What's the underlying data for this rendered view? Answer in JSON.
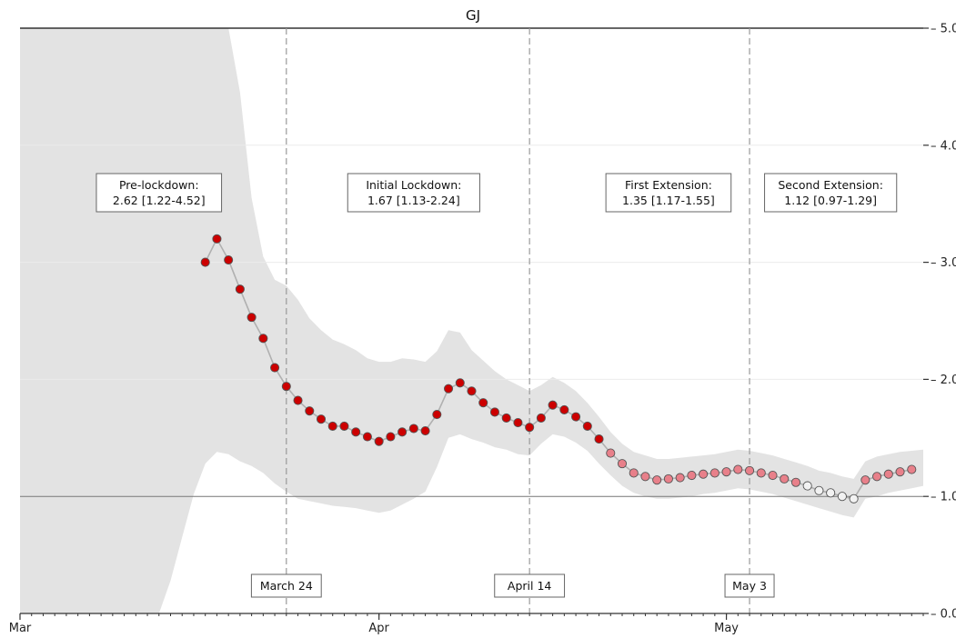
{
  "chart_data": {
    "type": "line",
    "title": "GJ",
    "xlabel": "",
    "ylabel": "",
    "y_axis_side": "right",
    "ylim": [
      0.0,
      5.0
    ],
    "yticks": [
      "0.0",
      "1.0",
      "2.0",
      "3.0",
      "4.0",
      "5.0"
    ],
    "xlim": [
      "2020-03-01",
      "2020-05-18"
    ],
    "xticks": [
      {
        "date": "2020-03-01",
        "label": "Mar"
      },
      {
        "date": "2020-04-01",
        "label": "Apr"
      },
      {
        "date": "2020-05-01",
        "label": "May"
      }
    ],
    "reference_lines": [
      1.0,
      5.0
    ],
    "grid": true,
    "colors": {
      "band": "#e3e3e3",
      "line": "#b0b0b0",
      "vline": "#9a9a9a",
      "point_dark": "#cc0000",
      "point_mid": "#e8808a",
      "point_light": "#f2f2f2",
      "point_edge": "#555555"
    },
    "phases": [
      {
        "label": "Pre-lockdown:",
        "value": "2.62 [1.22-4.52]",
        "x_center": "2020-03-13"
      },
      {
        "label": "Initial Lockdown:",
        "value": "1.67 [1.13-2.24]",
        "x_center": "2020-04-04"
      },
      {
        "label": "First Extension:",
        "value": "1.35 [1.17-1.55]",
        "x_center": "2020-04-26"
      },
      {
        "label": "Second Extension:",
        "value": "1.12 [0.97-1.29]",
        "x_center": "2020-05-10"
      }
    ],
    "events": [
      {
        "date": "2020-03-24",
        "label": "March 24"
      },
      {
        "date": "2020-04-14",
        "label": "April 14"
      },
      {
        "date": "2020-05-03",
        "label": "May 3"
      }
    ],
    "series": [
      {
        "values": [
          [
            "2020-03-17",
            3.0,
            "dark"
          ],
          [
            "2020-03-18",
            3.2,
            "dark"
          ],
          [
            "2020-03-19",
            3.02,
            "dark"
          ],
          [
            "2020-03-20",
            2.77,
            "dark"
          ],
          [
            "2020-03-21",
            2.53,
            "dark"
          ],
          [
            "2020-03-22",
            2.35,
            "dark"
          ],
          [
            "2020-03-23",
            2.1,
            "dark"
          ],
          [
            "2020-03-24",
            1.94,
            "dark"
          ],
          [
            "2020-03-25",
            1.82,
            "dark"
          ],
          [
            "2020-03-26",
            1.73,
            "dark"
          ],
          [
            "2020-03-27",
            1.66,
            "dark"
          ],
          [
            "2020-03-28",
            1.6,
            "dark"
          ],
          [
            "2020-03-29",
            1.6,
            "dark"
          ],
          [
            "2020-03-30",
            1.55,
            "dark"
          ],
          [
            "2020-03-31",
            1.51,
            "dark"
          ],
          [
            "2020-04-01",
            1.47,
            "dark"
          ],
          [
            "2020-04-02",
            1.51,
            "dark"
          ],
          [
            "2020-04-03",
            1.55,
            "dark"
          ],
          [
            "2020-04-04",
            1.58,
            "dark"
          ],
          [
            "2020-04-05",
            1.56,
            "dark"
          ],
          [
            "2020-04-06",
            1.7,
            "dark"
          ],
          [
            "2020-04-07",
            1.92,
            "dark"
          ],
          [
            "2020-04-08",
            1.97,
            "dark"
          ],
          [
            "2020-04-09",
            1.9,
            "dark"
          ],
          [
            "2020-04-10",
            1.8,
            "dark"
          ],
          [
            "2020-04-11",
            1.72,
            "dark"
          ],
          [
            "2020-04-12",
            1.67,
            "dark"
          ],
          [
            "2020-04-13",
            1.63,
            "dark"
          ],
          [
            "2020-04-14",
            1.59,
            "dark"
          ],
          [
            "2020-04-15",
            1.67,
            "dark"
          ],
          [
            "2020-04-16",
            1.78,
            "dark"
          ],
          [
            "2020-04-17",
            1.74,
            "dark"
          ],
          [
            "2020-04-18",
            1.68,
            "dark"
          ],
          [
            "2020-04-19",
            1.6,
            "dark"
          ],
          [
            "2020-04-20",
            1.49,
            "dark"
          ],
          [
            "2020-04-21",
            1.37,
            "mid"
          ],
          [
            "2020-04-22",
            1.28,
            "mid"
          ],
          [
            "2020-04-23",
            1.2,
            "mid"
          ],
          [
            "2020-04-24",
            1.17,
            "mid"
          ],
          [
            "2020-04-25",
            1.14,
            "mid"
          ],
          [
            "2020-04-26",
            1.15,
            "mid"
          ],
          [
            "2020-04-27",
            1.16,
            "mid"
          ],
          [
            "2020-04-28",
            1.18,
            "mid"
          ],
          [
            "2020-04-29",
            1.19,
            "mid"
          ],
          [
            "2020-04-30",
            1.2,
            "mid"
          ],
          [
            "2020-05-01",
            1.21,
            "mid"
          ],
          [
            "2020-05-02",
            1.23,
            "mid"
          ],
          [
            "2020-05-03",
            1.22,
            "mid"
          ],
          [
            "2020-05-04",
            1.2,
            "mid"
          ],
          [
            "2020-05-05",
            1.18,
            "mid"
          ],
          [
            "2020-05-06",
            1.15,
            "mid"
          ],
          [
            "2020-05-07",
            1.12,
            "mid"
          ],
          [
            "2020-05-08",
            1.09,
            "light"
          ],
          [
            "2020-05-09",
            1.05,
            "light"
          ],
          [
            "2020-05-10",
            1.03,
            "light"
          ],
          [
            "2020-05-11",
            1.0,
            "light"
          ],
          [
            "2020-05-12",
            0.98,
            "light"
          ],
          [
            "2020-05-13",
            1.14,
            "mid"
          ],
          [
            "2020-05-14",
            1.17,
            "mid"
          ],
          [
            "2020-05-15",
            1.19,
            "mid"
          ],
          [
            "2020-05-16",
            1.21,
            "mid"
          ],
          [
            "2020-05-17",
            1.23,
            "mid"
          ]
        ]
      }
    ],
    "band": {
      "upper": [
        [
          "2020-03-01",
          5.0
        ],
        [
          "2020-03-19",
          5.0
        ],
        [
          "2020-03-20",
          4.45
        ],
        [
          "2020-03-21",
          3.55
        ],
        [
          "2020-03-22",
          3.05
        ],
        [
          "2020-03-23",
          2.85
        ],
        [
          "2020-03-24",
          2.8
        ],
        [
          "2020-03-25",
          2.68
        ],
        [
          "2020-03-26",
          2.52
        ],
        [
          "2020-03-27",
          2.42
        ],
        [
          "2020-03-28",
          2.34
        ],
        [
          "2020-03-29",
          2.3
        ],
        [
          "2020-03-30",
          2.25
        ],
        [
          "2020-03-31",
          2.18
        ],
        [
          "2020-04-01",
          2.15
        ],
        [
          "2020-04-02",
          2.15
        ],
        [
          "2020-04-03",
          2.18
        ],
        [
          "2020-04-04",
          2.17
        ],
        [
          "2020-04-05",
          2.15
        ],
        [
          "2020-04-06",
          2.24
        ],
        [
          "2020-04-07",
          2.42
        ],
        [
          "2020-04-08",
          2.4
        ],
        [
          "2020-04-09",
          2.25
        ],
        [
          "2020-04-10",
          2.16
        ],
        [
          "2020-04-11",
          2.07
        ],
        [
          "2020-04-12",
          2.0
        ],
        [
          "2020-04-13",
          1.95
        ],
        [
          "2020-04-14",
          1.9
        ],
        [
          "2020-04-15",
          1.95
        ],
        [
          "2020-04-16",
          2.02
        ],
        [
          "2020-04-17",
          1.97
        ],
        [
          "2020-04-18",
          1.9
        ],
        [
          "2020-04-19",
          1.8
        ],
        [
          "2020-04-20",
          1.68
        ],
        [
          "2020-04-21",
          1.55
        ],
        [
          "2020-04-22",
          1.45
        ],
        [
          "2020-04-23",
          1.38
        ],
        [
          "2020-04-24",
          1.35
        ],
        [
          "2020-04-25",
          1.32
        ],
        [
          "2020-04-26",
          1.32
        ],
        [
          "2020-04-27",
          1.33
        ],
        [
          "2020-04-28",
          1.34
        ],
        [
          "2020-04-29",
          1.35
        ],
        [
          "2020-04-30",
          1.36
        ],
        [
          "2020-05-01",
          1.38
        ],
        [
          "2020-05-02",
          1.4
        ],
        [
          "2020-05-03",
          1.39
        ],
        [
          "2020-05-04",
          1.37
        ],
        [
          "2020-05-05",
          1.35
        ],
        [
          "2020-05-06",
          1.32
        ],
        [
          "2020-05-07",
          1.29
        ],
        [
          "2020-05-08",
          1.26
        ],
        [
          "2020-05-09",
          1.22
        ],
        [
          "2020-05-10",
          1.2
        ],
        [
          "2020-05-11",
          1.17
        ],
        [
          "2020-05-12",
          1.15
        ],
        [
          "2020-05-13",
          1.3
        ],
        [
          "2020-05-14",
          1.34
        ],
        [
          "2020-05-15",
          1.36
        ],
        [
          "2020-05-16",
          1.38
        ],
        [
          "2020-05-17",
          1.39
        ],
        [
          "2020-05-18",
          1.4
        ]
      ],
      "lower": [
        [
          "2020-03-01",
          0.0
        ],
        [
          "2020-03-13",
          0.0
        ],
        [
          "2020-03-14",
          0.28
        ],
        [
          "2020-03-15",
          0.65
        ],
        [
          "2020-03-16",
          1.02
        ],
        [
          "2020-03-17",
          1.28
        ],
        [
          "2020-03-18",
          1.38
        ],
        [
          "2020-03-19",
          1.36
        ],
        [
          "2020-03-20",
          1.3
        ],
        [
          "2020-03-21",
          1.26
        ],
        [
          "2020-03-22",
          1.2
        ],
        [
          "2020-03-23",
          1.11
        ],
        [
          "2020-03-24",
          1.04
        ],
        [
          "2020-03-25",
          0.98
        ],
        [
          "2020-03-26",
          0.96
        ],
        [
          "2020-03-27",
          0.94
        ],
        [
          "2020-03-28",
          0.92
        ],
        [
          "2020-03-29",
          0.91
        ],
        [
          "2020-03-30",
          0.9
        ],
        [
          "2020-03-31",
          0.88
        ],
        [
          "2020-04-01",
          0.86
        ],
        [
          "2020-04-02",
          0.88
        ],
        [
          "2020-04-03",
          0.93
        ],
        [
          "2020-04-04",
          0.98
        ],
        [
          "2020-04-05",
          1.04
        ],
        [
          "2020-04-06",
          1.25
        ],
        [
          "2020-04-07",
          1.5
        ],
        [
          "2020-04-08",
          1.53
        ],
        [
          "2020-04-09",
          1.49
        ],
        [
          "2020-04-10",
          1.46
        ],
        [
          "2020-04-11",
          1.42
        ],
        [
          "2020-04-12",
          1.4
        ],
        [
          "2020-04-13",
          1.36
        ],
        [
          "2020-04-14",
          1.35
        ],
        [
          "2020-04-15",
          1.45
        ],
        [
          "2020-04-16",
          1.53
        ],
        [
          "2020-04-17",
          1.51
        ],
        [
          "2020-04-18",
          1.46
        ],
        [
          "2020-04-19",
          1.39
        ],
        [
          "2020-04-20",
          1.28
        ],
        [
          "2020-04-21",
          1.18
        ],
        [
          "2020-04-22",
          1.09
        ],
        [
          "2020-04-23",
          1.03
        ],
        [
          "2020-04-24",
          1.0
        ],
        [
          "2020-04-25",
          0.98
        ],
        [
          "2020-04-26",
          0.98
        ],
        [
          "2020-04-27",
          0.99
        ],
        [
          "2020-04-28",
          1.0
        ],
        [
          "2020-04-29",
          1.02
        ],
        [
          "2020-04-30",
          1.03
        ],
        [
          "2020-05-01",
          1.05
        ],
        [
          "2020-05-02",
          1.07
        ],
        [
          "2020-05-03",
          1.06
        ],
        [
          "2020-05-04",
          1.04
        ],
        [
          "2020-05-05",
          1.02
        ],
        [
          "2020-05-06",
          0.99
        ],
        [
          "2020-05-07",
          0.96
        ],
        [
          "2020-05-08",
          0.93
        ],
        [
          "2020-05-09",
          0.9
        ],
        [
          "2020-05-10",
          0.87
        ],
        [
          "2020-05-11",
          0.84
        ],
        [
          "2020-05-12",
          0.82
        ],
        [
          "2020-05-13",
          0.98
        ],
        [
          "2020-05-14",
          1.0
        ],
        [
          "2020-05-15",
          1.03
        ],
        [
          "2020-05-16",
          1.05
        ],
        [
          "2020-05-17",
          1.07
        ],
        [
          "2020-05-18",
          1.09
        ]
      ]
    }
  }
}
